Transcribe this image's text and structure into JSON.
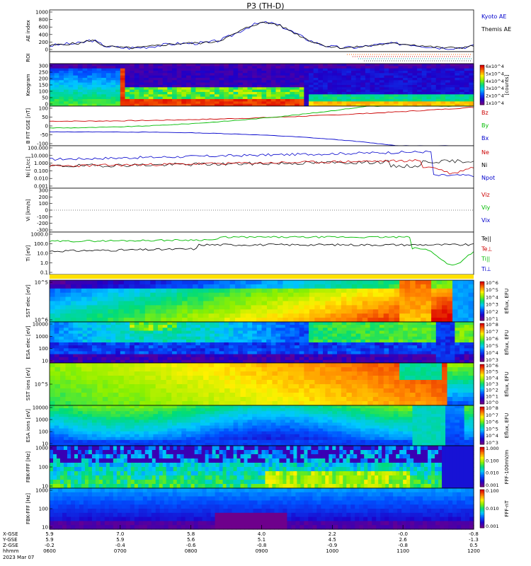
{
  "title": "P3 (TH-D)",
  "chart_data": [
    {
      "id": "ae",
      "type": "line",
      "ylabel": "AE index",
      "ylim": [
        0,
        1000
      ],
      "yticks": [
        "0",
        "200",
        "400",
        "600",
        "800",
        "1000"
      ],
      "series": [
        {
          "name": "Kyoto AE",
          "color": "#0000cc"
        },
        {
          "name": "Themis AE",
          "color": "#000000"
        }
      ]
    },
    {
      "id": "roi",
      "type": "line",
      "ylabel": "ROI"
    },
    {
      "id": "keo",
      "type": "heatmap",
      "ylabel": "Keogram",
      "ylim": [
        0,
        300
      ],
      "yticks": [
        "0",
        "50",
        "100",
        "150",
        "200",
        "250",
        "300"
      ],
      "colorbar": {
        "label": "[counts]",
        "ticks": [
          "1x10^4",
          "2x10^4",
          "3x10^4",
          "4x10^4",
          "5x10^4",
          "6x10^4"
        ]
      }
    },
    {
      "id": "bfit",
      "type": "line",
      "ylabel": "B FIT GSE [nT]",
      "ylim": [
        -100,
        100
      ],
      "yticks": [
        "-100",
        "-50",
        "0",
        "50",
        "100"
      ],
      "series": [
        {
          "name": "Bz",
          "color": "#cc0000"
        },
        {
          "name": "By",
          "color": "#00bb00"
        },
        {
          "name": "Bx",
          "color": "#0000cc"
        }
      ]
    },
    {
      "id": "ni",
      "type": "line",
      "ylabel": "Ni [1/cc]",
      "yscale": "log",
      "yticks": [
        "0.001",
        "0.010",
        "0.100",
        "1.000",
        "10.000",
        "100.000"
      ],
      "series": [
        {
          "name": "Ne",
          "color": "#cc0000"
        },
        {
          "name": "Ni",
          "color": "#000000"
        },
        {
          "name": "Npot",
          "color": "#0000cc"
        }
      ]
    },
    {
      "id": "vi",
      "type": "line",
      "ylabel": "Vi [km/s]",
      "ylim": [
        -300,
        300
      ],
      "yticks": [
        "-300",
        "-200",
        "-100",
        "0",
        "100",
        "200",
        "300"
      ],
      "series": [
        {
          "name": "Viz",
          "color": "#cc0000"
        },
        {
          "name": "Viy",
          "color": "#00bb00"
        },
        {
          "name": "Vix",
          "color": "#0000cc"
        }
      ]
    },
    {
      "id": "ti",
      "type": "line",
      "ylabel": "Ti [eV]",
      "yscale": "log",
      "yticks": [
        "0.1",
        "1.0",
        "10.0",
        "100.0",
        "1000.0"
      ],
      "series": [
        {
          "name": "Te||",
          "color": "#000000"
        },
        {
          "name": "Te⊥",
          "color": "#cc0000"
        },
        {
          "name": "Ti||",
          "color": "#00bb00"
        },
        {
          "name": "Ti⊥",
          "color": "#0000cc"
        }
      ]
    },
    {
      "id": "sst_e",
      "type": "heatmap",
      "ylabel": "SST elec [eV]",
      "yticks": [
        "10^6",
        "10^5"
      ],
      "colorbar": {
        "label": "Eflux, EFU",
        "ticks": [
          "10^1",
          "10^2",
          "10^3",
          "10^4",
          "10^5",
          "10^6"
        ]
      }
    },
    {
      "id": "esa_e",
      "type": "heatmap",
      "ylabel": "ESA elec [eV]",
      "yticks": [
        "10",
        "100",
        "1000",
        "10000"
      ],
      "colorbar": {
        "label": "Eflux, EFU",
        "ticks": [
          "10^3",
          "10^4",
          "10^5",
          "10^6",
          "10^7",
          "10^8"
        ]
      }
    },
    {
      "id": "sst_i",
      "type": "heatmap",
      "ylabel": "SST ions [eV]",
      "yticks": [
        "10^5"
      ],
      "colorbar": {
        "label": "Eflux, EFU",
        "ticks": [
          "10^0",
          "10^1",
          "10^2",
          "10^3",
          "10^4",
          "10^5",
          "10^6"
        ]
      }
    },
    {
      "id": "esa_i",
      "type": "heatmap",
      "ylabel": "ESA ions [eV]",
      "yticks": [
        "10",
        "100",
        "1000",
        "10000"
      ],
      "colorbar": {
        "label": "Eflux, EFU",
        "ticks": [
          "10^3",
          "10^4",
          "10^5",
          "10^6",
          "10^7",
          "10^8"
        ]
      }
    },
    {
      "id": "fbk_e",
      "type": "heatmap",
      "ylabel": "FBK-FFF [Hz]",
      "yticks": [
        "10",
        "100",
        "1000"
      ],
      "colorbar": {
        "label": "FFF-100mV/m",
        "ticks": [
          "0.001",
          "0.010",
          "0.100",
          "1.000"
        ]
      }
    },
    {
      "id": "fbk_b",
      "type": "heatmap",
      "ylabel": "FBK-FFF [Hz]",
      "yticks": [
        "10",
        "100",
        "1000"
      ],
      "colorbar": {
        "label": "FFF-nT",
        "ticks": [
          "0.001",
          "0.010",
          "0.100"
        ]
      }
    }
  ],
  "xaxis": {
    "row_labels": [
      "X-GSE",
      "Y-GSE",
      "Z-GSE",
      "hhmm"
    ],
    "date": "2023 Mar 07",
    "ticks": [
      {
        "x": "5.9",
        "y": "5.9",
        "z": "-0.2",
        "t": "0600"
      },
      {
        "x": "7.0",
        "y": "5.9",
        "z": "-0.4",
        "t": "0700"
      },
      {
        "x": "5.8",
        "y": "5.6",
        "z": "-0.6",
        "t": "0800"
      },
      {
        "x": "4.0",
        "y": "5.1",
        "z": "-0.8",
        "t": "0900"
      },
      {
        "x": "2.2",
        "y": "4.5",
        "z": "-0.9",
        "t": "1000"
      },
      {
        "x": "-0.0",
        "y": "2.6",
        "z": "-0.8",
        "t": "1100"
      },
      {
        "x": "-0.8",
        "y": "-1.3",
        "z": "0.5",
        "t": "1200"
      }
    ]
  }
}
